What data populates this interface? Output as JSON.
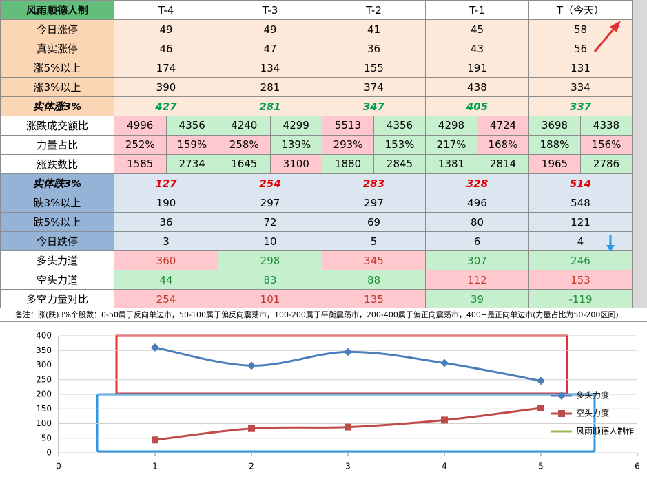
{
  "table": {
    "header": [
      "风雨顺德人制",
      "T-4",
      "T-3",
      "T-2",
      "T-1",
      "T（今天）"
    ],
    "rows": [
      {
        "label": "今日涨停",
        "values": [
          49,
          49,
          41,
          45,
          58
        ]
      },
      {
        "label": "真实涨停",
        "values": [
          46,
          47,
          36,
          43,
          56
        ]
      },
      {
        "label": "涨5%以上",
        "values": [
          174,
          134,
          155,
          191,
          131
        ]
      },
      {
        "label": "涨3%以上",
        "values": [
          390,
          281,
          374,
          438,
          334
        ]
      },
      {
        "label": "实体涨3%",
        "values": [
          427,
          281,
          347,
          405,
          337
        ]
      },
      {
        "label": "涨跌成交额比",
        "values": [
          [
            4996,
            4356
          ],
          [
            4240,
            4299
          ],
          [
            5513,
            4356
          ],
          [
            4298,
            4724
          ],
          [
            3698,
            4338
          ]
        ]
      },
      {
        "label": "力量占比",
        "values": [
          [
            "252%",
            "159%"
          ],
          [
            "258%",
            "139%"
          ],
          [
            "293%",
            "153%"
          ],
          [
            "217%",
            "168%"
          ],
          [
            "188%",
            "156%"
          ]
        ]
      },
      {
        "label": "涨跌数比",
        "values": [
          [
            1585,
            2734
          ],
          [
            1645,
            3100
          ],
          [
            1880,
            2845
          ],
          [
            1381,
            2814
          ],
          [
            1965,
            2786
          ]
        ]
      },
      {
        "label": "实体跌3%",
        "values": [
          127,
          254,
          283,
          328,
          514
        ]
      },
      {
        "label": "跌3%以上",
        "values": [
          190,
          297,
          297,
          496,
          548
        ]
      },
      {
        "label": "跌5%以上",
        "values": [
          36,
          72,
          69,
          80,
          121
        ]
      },
      {
        "label": "今日跌停",
        "values": [
          3,
          10,
          5,
          6,
          4
        ]
      },
      {
        "label": "多头力道",
        "values": [
          360,
          298,
          345,
          307,
          246
        ]
      },
      {
        "label": "空头力道",
        "values": [
          44,
          83,
          88,
          112,
          153
        ]
      },
      {
        "label": "多空力量对比",
        "values": [
          254,
          101,
          135,
          39,
          -119
        ]
      }
    ],
    "note": "备注：涨(跌)3%个股数：0-50属于反向单边市，50-100属于偏反向震荡市，100-200属于平衡震荡市，200-400属于偏正向震荡市，400+是正向单边市(力量占比为50-200区间)"
  },
  "chart_data": {
    "type": "line",
    "x": [
      1,
      2,
      3,
      4,
      5
    ],
    "xlim": [
      0,
      6
    ],
    "xticks": [
      0,
      1,
      2,
      3,
      4,
      5,
      6
    ],
    "ylim": [
      0,
      400
    ],
    "yticks": [
      0,
      50,
      100,
      150,
      200,
      250,
      300,
      350,
      400
    ],
    "grid": true,
    "legend": "right",
    "series": [
      {
        "name": "多头力度",
        "color": "#4a7ebb",
        "marker": "diamond",
        "values": [
          360,
          298,
          345,
          307,
          246
        ]
      },
      {
        "name": "空头力度",
        "color": "#be4b48",
        "marker": "square",
        "values": [
          44,
          83,
          88,
          112,
          153
        ]
      },
      {
        "name": "风雨顺德人制作",
        "color": "#98b954",
        "values": [
          null,
          null,
          null,
          null,
          null
        ]
      }
    ]
  }
}
